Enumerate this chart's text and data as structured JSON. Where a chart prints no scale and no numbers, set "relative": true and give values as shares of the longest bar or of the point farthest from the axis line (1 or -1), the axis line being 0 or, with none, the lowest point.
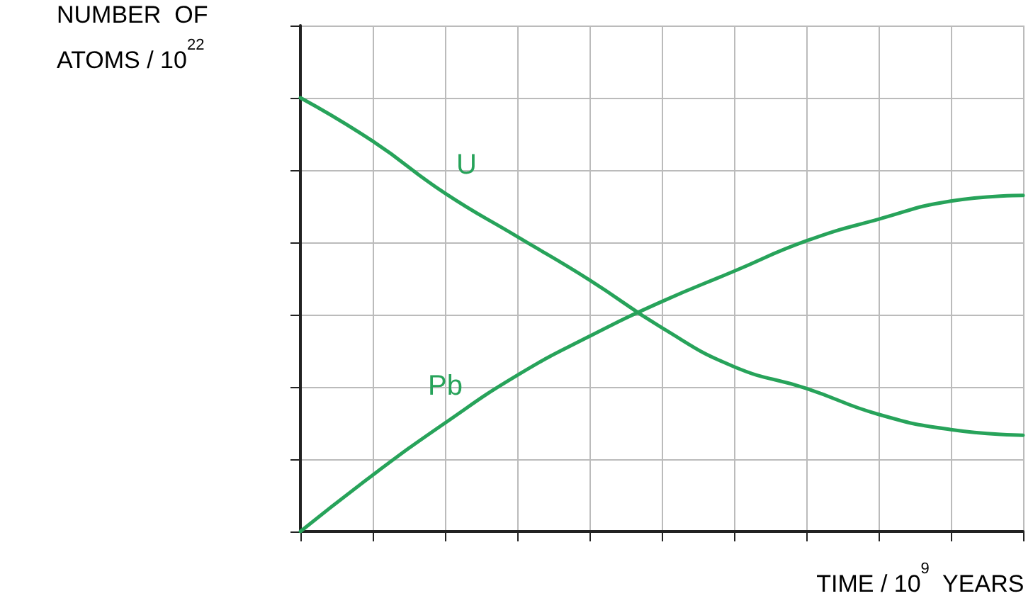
{
  "chart_data": {
    "type": "line",
    "relative": true,
    "xlabel": "TIME / 10$^{9}$  YEARS",
    "ylabel": "NUMBER  OF\nATOMS / 10$^{22}$",
    "categories": [
      null,
      null,
      null,
      null,
      null,
      null,
      null,
      null,
      null,
      null,
      null
    ],
    "series": [
      {
        "name": "U",
        "color": "#27a35a",
        "values": [
          1,
          0.9,
          0.78,
          0.68,
          0.58,
          0.47,
          0.38,
          0.33,
          0.27,
          0.235,
          0.222
        ]
      },
      {
        "name": "Pb",
        "color": "#27a35a",
        "values": [
          0,
          0.13,
          0.25,
          0.36,
          0.45,
          0.53,
          0.6,
          0.67,
          0.72,
          0.762,
          0.775
        ]
      }
    ],
    "grid": true,
    "marker": "none",
    "line_style": "solid"
  }
}
